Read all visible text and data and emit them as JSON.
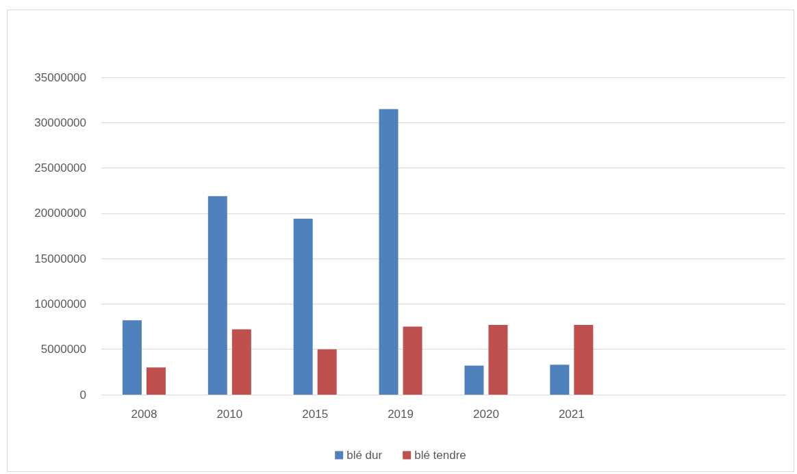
{
  "chart_data": {
    "type": "bar",
    "categories": [
      "2008",
      "2010",
      "2015",
      "2019",
      "2020",
      "2021",
      null,
      null
    ],
    "series": [
      {
        "name": "blé dur",
        "color": "#4f81bd",
        "values": [
          8200000,
          21900000,
          19400000,
          31500000,
          3200000,
          3300000,
          null,
          null
        ]
      },
      {
        "name": "blé tendre",
        "color": "#c0504d",
        "values": [
          3000000,
          7200000,
          5000000,
          7500000,
          7700000,
          7700000,
          null,
          null
        ]
      }
    ],
    "ylim": [
      0,
      35000000
    ],
    "yticks": [
      0,
      5000000,
      10000000,
      15000000,
      20000000,
      25000000,
      30000000,
      35000000
    ],
    "grid": "y",
    "legend": "bottom"
  }
}
